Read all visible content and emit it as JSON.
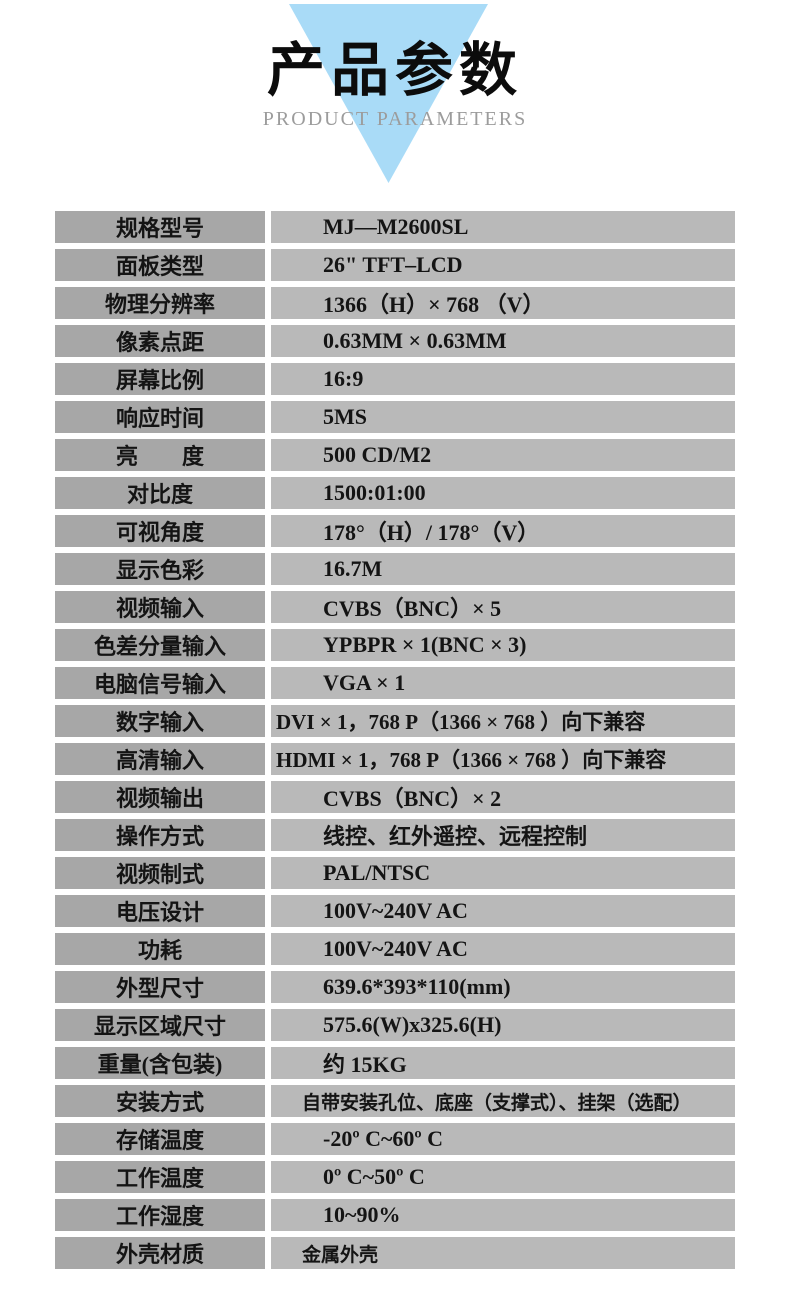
{
  "header": {
    "title": "产品参数",
    "subtitle": "PRODUCT PARAMETERS",
    "triangle_icon": "inverted-triangle",
    "triangle_color": "#a9dbf7",
    "subtitle_color": "#9c9c9c"
  },
  "colors": {
    "label_cell_bg": "#a7a7a7",
    "value_cell_bg": "#b9b9b9",
    "row_text": "#141414",
    "page_bg": "#ffffff"
  },
  "table": {
    "rows": [
      {
        "label": "规格型号",
        "value": "MJ—M2600SL"
      },
      {
        "label": "面板类型",
        "value": "26\" TFT–LCD"
      },
      {
        "label": "物理分辨率",
        "value": "1366（H）×  768 （V）"
      },
      {
        "label": "像素点距",
        "value": "0.63MM × 0.63MM"
      },
      {
        "label": "屏幕比例",
        "value": "16:9"
      },
      {
        "label": "响应时间",
        "value": "5MS"
      },
      {
        "label": "亮　　度",
        "value": "500 CD/M2"
      },
      {
        "label": "对比度",
        "value": "1500:01:00"
      },
      {
        "label": "可视角度",
        "value": "178°（H）/ 178°（V）"
      },
      {
        "label": "显示色彩",
        "value": "16.7M"
      },
      {
        "label": "视频输入",
        "value": "CVBS（BNC）× 5"
      },
      {
        "label": "色差分量输入",
        "value": "YPBPR × 1(BNC × 3)"
      },
      {
        "label": "电脑信号输入",
        "value": "VGA × 1"
      },
      {
        "label": "数字输入",
        "value": "DVI × 1，768 P（1366 ×  768 ）向下兼容"
      },
      {
        "label": "高清输入",
        "value": "HDMI × 1，768 P（1366 ×  768 ）向下兼容"
      },
      {
        "label": "视频输出",
        "value": "CVBS（BNC）× 2"
      },
      {
        "label": "操作方式",
        "value": "线控、红外遥控、远程控制"
      },
      {
        "label": "视频制式",
        "value": "PAL/NTSC"
      },
      {
        "label": "电压设计",
        "value": "100V~240V AC"
      },
      {
        "label": "功耗",
        "value": "100V~240V AC"
      },
      {
        "label": "外型尺寸",
        "value": "639.6*393*110(mm)"
      },
      {
        "label": "显示区域尺寸",
        "value": "575.6(W)x325.6(H)"
      },
      {
        "label": "重量(含包装)",
        "value": "约 15KG"
      },
      {
        "label": "安装方式",
        "value": "自带安装孔位、底座（支撑式）、挂架（选配）"
      },
      {
        "label": "存储温度",
        "value": "-20º C~60º C"
      },
      {
        "label": "工作温度",
        "value": "0º C~50º C"
      },
      {
        "label": "工作湿度",
        "value": "10~90%"
      },
      {
        "label": "外壳材质",
        "value": "金属外壳"
      }
    ]
  }
}
